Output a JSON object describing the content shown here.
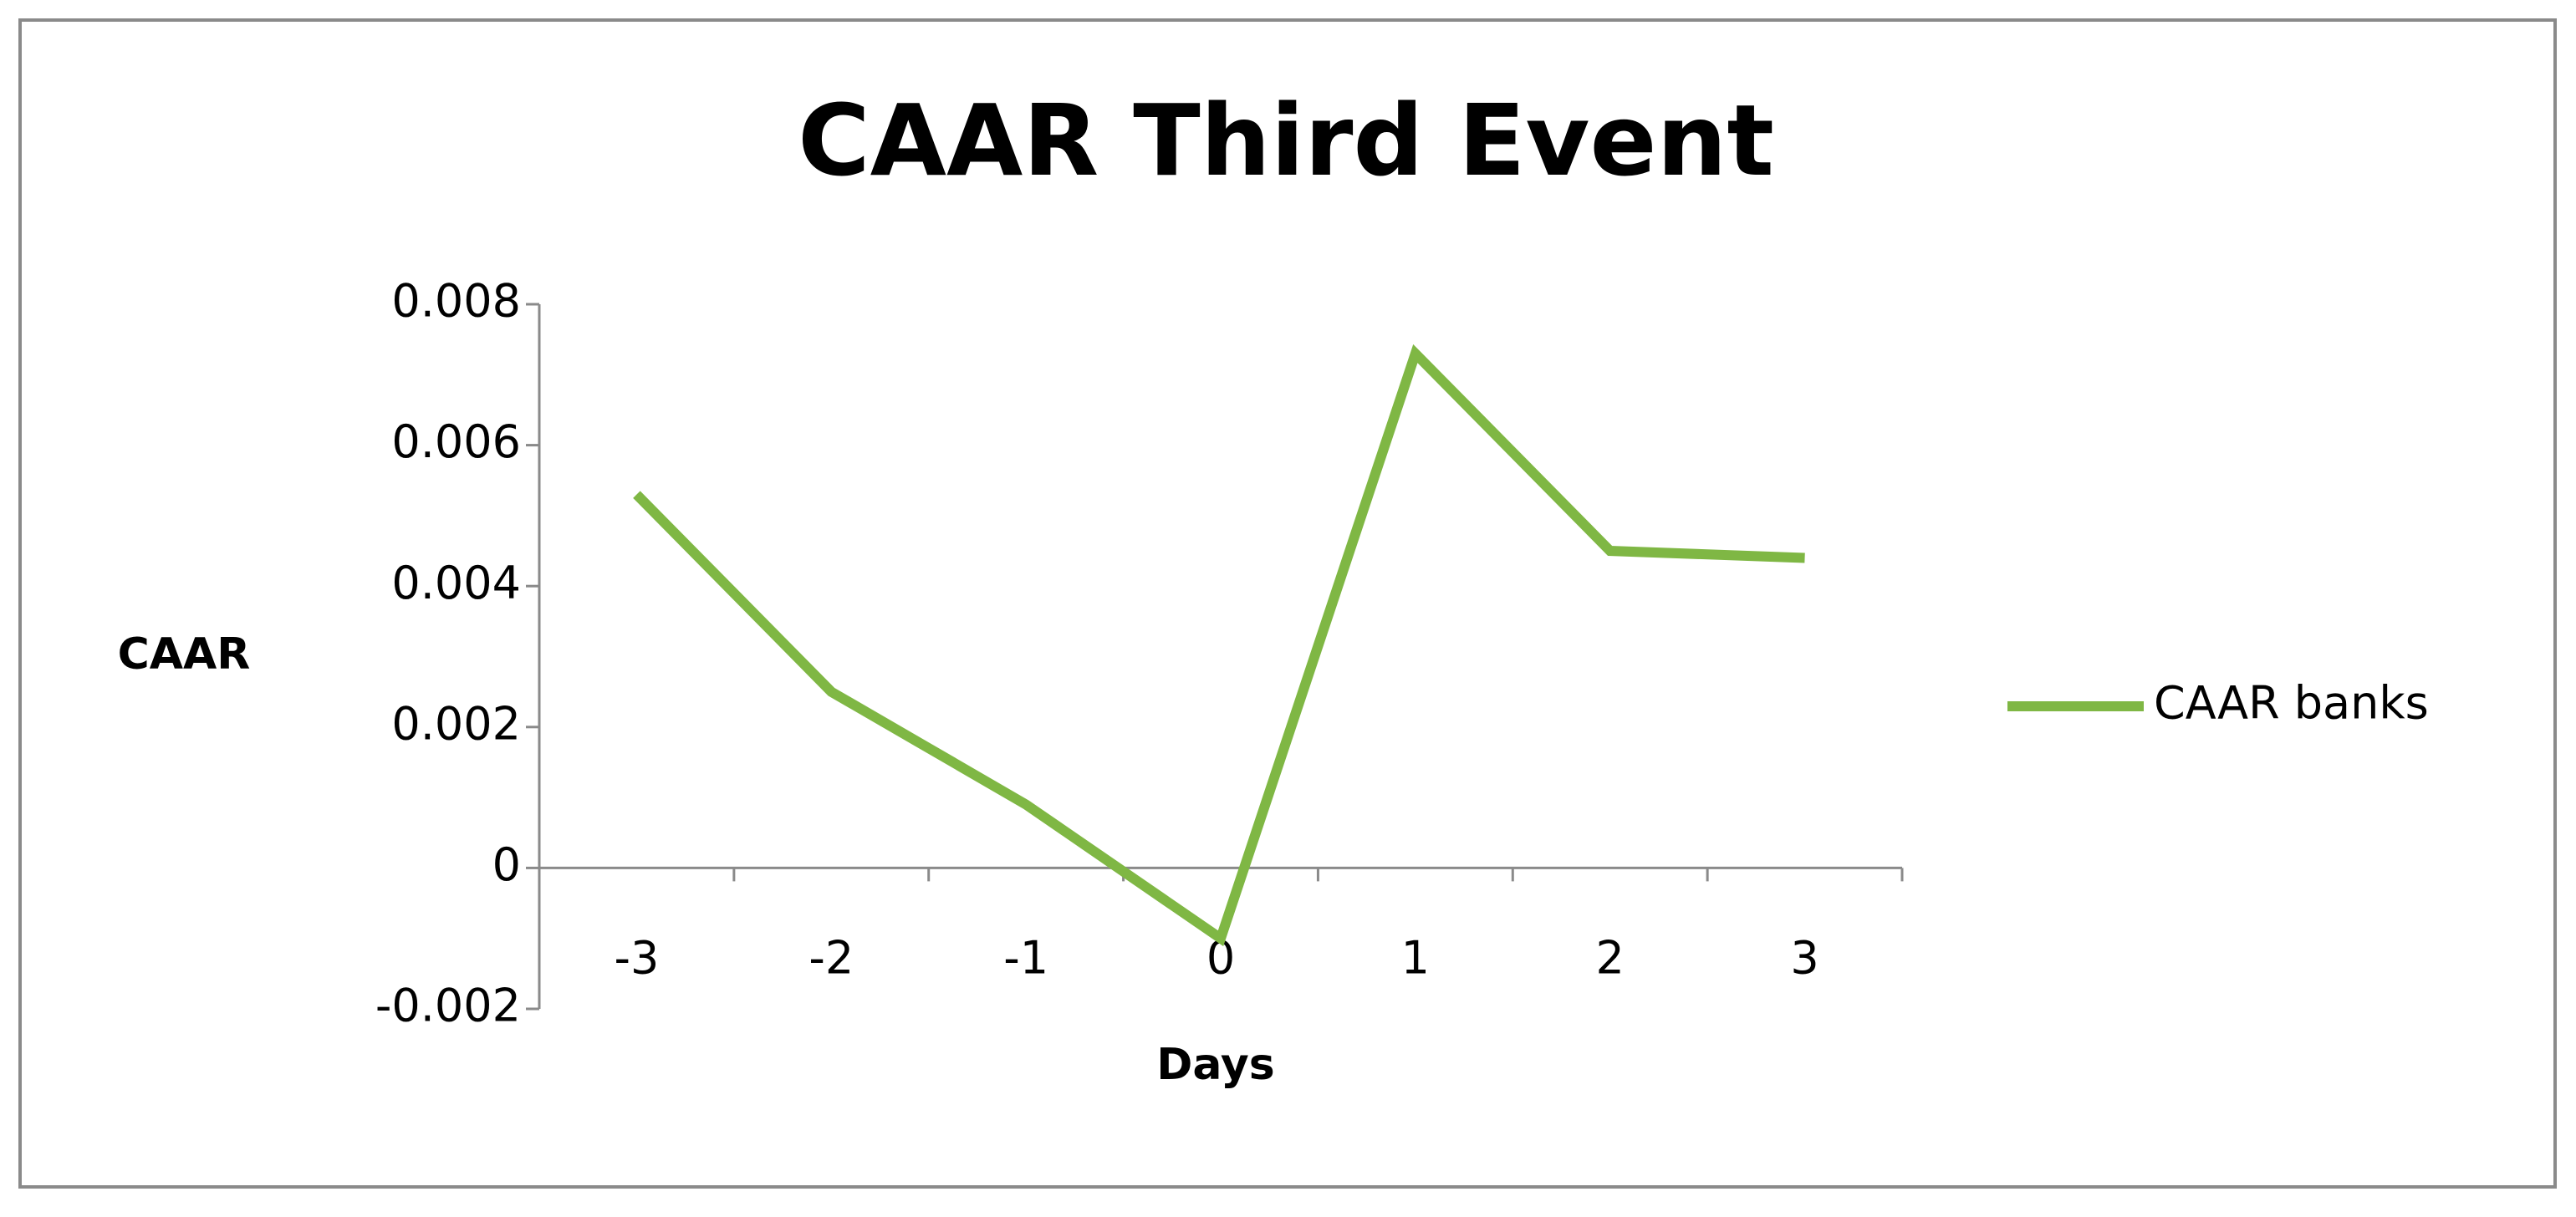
{
  "chart_data": {
    "type": "line",
    "title": "CAAR Third Event",
    "x_label": "Days",
    "y_label": "CAAR",
    "categories": [
      "-3",
      "-2",
      "-1",
      "0",
      "1",
      "2",
      "3"
    ],
    "series": [
      {
        "name": "CAAR banks",
        "color": "#7fb744",
        "values": [
          0.0053,
          0.0025,
          0.0009,
          -0.001,
          0.0073,
          0.0045,
          0.0044
        ]
      }
    ],
    "ylim": [
      -0.002,
      0.008
    ],
    "yticks": [
      -0.002,
      0,
      0.002,
      0.004,
      0.006,
      0.008
    ],
    "grid": false,
    "legend": "right"
  }
}
